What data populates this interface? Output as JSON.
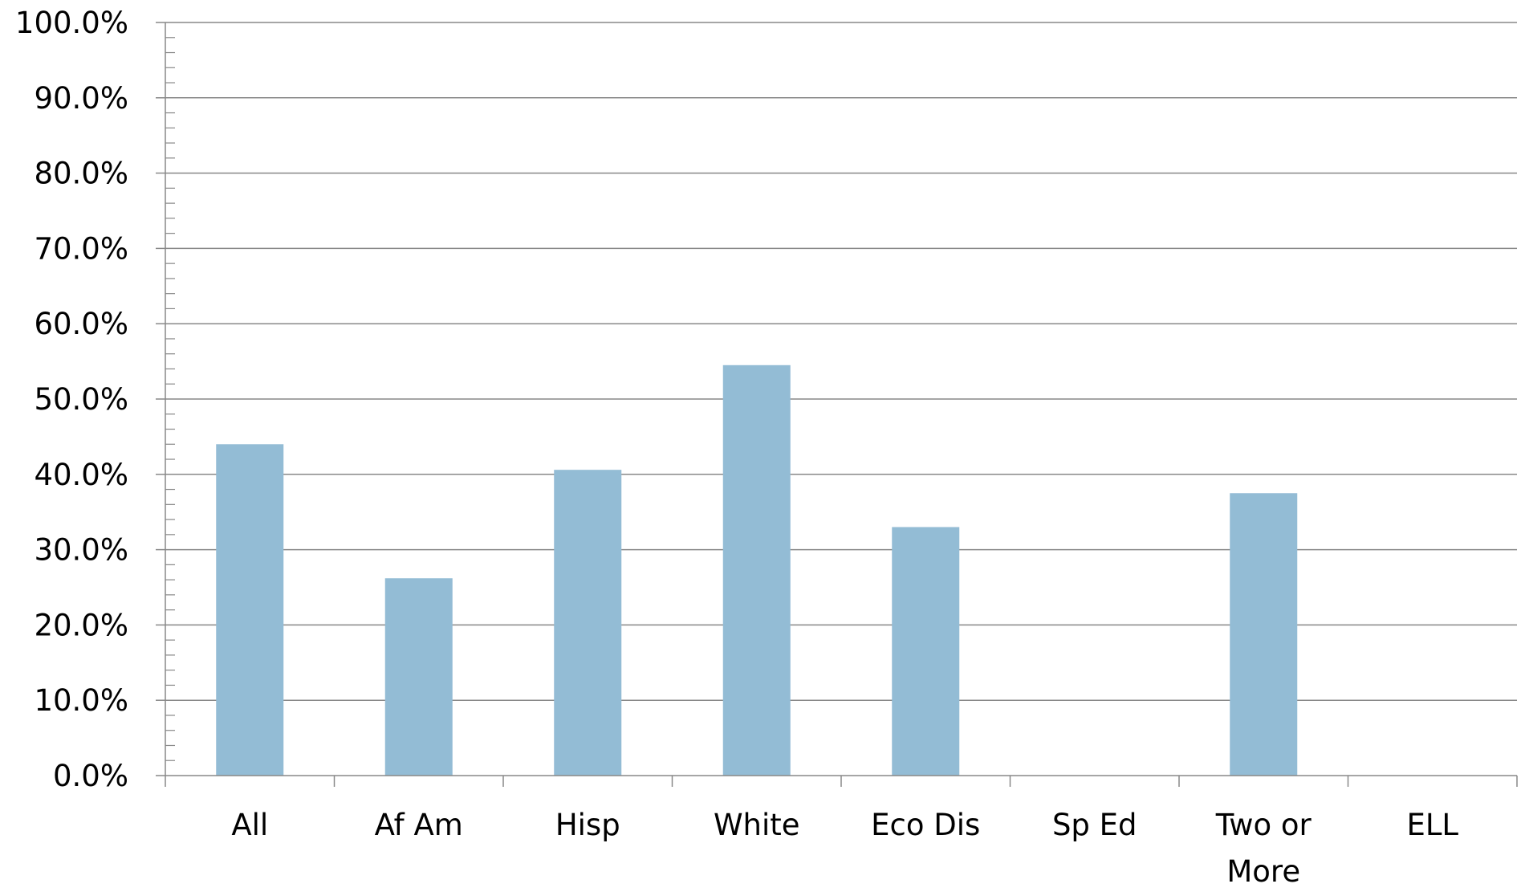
{
  "chart_data": {
    "type": "bar",
    "title": "",
    "xlabel": "",
    "ylabel": "",
    "categories": [
      "All",
      "Af Am",
      "Hisp",
      "White",
      "Eco Dis",
      "Sp Ed",
      "Two or More",
      "ELL"
    ],
    "category_lines": [
      [
        "All"
      ],
      [
        "Af Am"
      ],
      [
        "Hisp"
      ],
      [
        "White"
      ],
      [
        "Eco Dis"
      ],
      [
        "Sp Ed"
      ],
      [
        "Two or",
        "More"
      ],
      [
        "ELL"
      ]
    ],
    "values": [
      0.44,
      0.262,
      0.406,
      0.545,
      0.33,
      null,
      0.375,
      null
    ],
    "ylim": [
      0,
      1.0
    ],
    "y_ticks": [
      0,
      0.1,
      0.2,
      0.3,
      0.4,
      0.5,
      0.6,
      0.7,
      0.8,
      0.9,
      1.0
    ],
    "y_tick_labels": [
      "0.0%",
      "10.0%",
      "20.0%",
      "30.0%",
      "40.0%",
      "50.0%",
      "60.0%",
      "70.0%",
      "80.0%",
      "90.0%",
      "100.0%"
    ],
    "grid": true,
    "legend": "none",
    "colors": {
      "bar": "#93BCD5",
      "grid": "#888888",
      "axis": "#888888"
    }
  }
}
